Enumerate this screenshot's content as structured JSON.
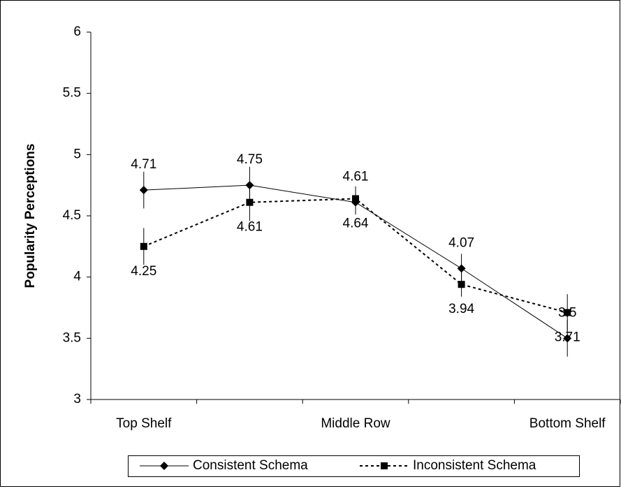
{
  "chart_data": {
    "type": "line",
    "y_label": "Popularity Perceptions",
    "categories": [
      "Top Shelf",
      null,
      "Middle Row",
      null,
      "Bottom Shelf"
    ],
    "series": [
      {
        "name": "Consistent Schema",
        "color": "#000000",
        "line_style": "solid",
        "marker": "diamond",
        "label_side": "above",
        "values": [
          4.71,
          4.75,
          4.61,
          4.07,
          3.5
        ],
        "errors": [
          0.15,
          0.15,
          0.1,
          0.12,
          0.15
        ]
      },
      {
        "name": "Inconsistent Schema",
        "color": "#000000",
        "line_style": "dotted",
        "marker": "square",
        "label_side": "below",
        "values": [
          4.25,
          4.61,
          4.64,
          3.94,
          3.71
        ],
        "errors": [
          0.15,
          0.15,
          0.1,
          0.1,
          0.15
        ]
      }
    ],
    "ylim": [
      3,
      6
    ],
    "yticks": [
      3,
      3.5,
      4,
      4.5,
      5,
      5.5,
      6
    ],
    "grid": false,
    "legend": "bottom"
  }
}
